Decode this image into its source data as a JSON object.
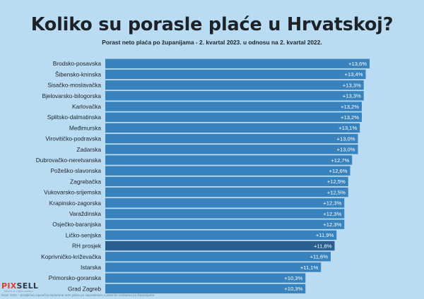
{
  "header": {
    "title": "Koliko su porasle plaće u Hrvatskoj?",
    "subtitle": "Porast neto plaća po županijama - 2. kvartal 2023. u odnosu na 2. kvartal 2022."
  },
  "colors": {
    "background": "#b9dcf3",
    "bar": "#3883bd",
    "bar_highlight": "#2a5f8f",
    "text": "#1c2228"
  },
  "chart_data": {
    "type": "bar",
    "orientation": "horizontal",
    "title": "Koliko su porasle plaće u Hrvatskoj?",
    "subtitle": "Porast neto plaća po županijama - 2. kvartal 2023. u odnosu na 2. kvartal 2022.",
    "categories": [
      "Brodsko-posavska",
      "Šibensko-kninska",
      "Sisačko-moslavačka",
      "Bjelovarsko-bilogorska",
      "Karlovačka",
      "Splitsko-dalmatinska",
      "Međimurska",
      "Virovitičko-podravska",
      "Zadarska",
      "Dubrovačko-neretvanska",
      "Požeško-slavonska",
      "Zagrebačka",
      "Vukovarsko-srijemska",
      "Krapinsko-zagorska",
      "Varaždinska",
      "Osječko-baranjska",
      "Ličko-senjska",
      "RH prosjek",
      "Koprivničko-križevačka",
      "Istarska",
      "Primorsko-goranska",
      "Grad Zagreb"
    ],
    "values": [
      13.6,
      13.4,
      13.3,
      13.3,
      13.2,
      13.2,
      13.1,
      13.0,
      13.0,
      12.7,
      12.6,
      12.5,
      12.5,
      12.3,
      12.3,
      12.3,
      11.9,
      11.8,
      11.6,
      11.1,
      10.3,
      10.3
    ],
    "value_labels": [
      "+13,6%",
      "+13,4%",
      "+13,3%",
      "+13,3%",
      "+13,2%",
      "+13,2%",
      "+13,1%",
      "+13,0%",
      "+13,0%",
      "+12,7%",
      "+12,6%",
      "+12,5%",
      "+12,5%",
      "+12,3%",
      "+12,3%",
      "+12,3%",
      "+11,9%",
      "+11,8%",
      "+11,6%",
      "+11,1%",
      "+10,3%",
      "+10,3%"
    ],
    "highlight_category": "RH prosjek",
    "xlim": [
      0,
      13.6
    ],
    "grid": false,
    "legend": "none"
  },
  "footer": {
    "logo_pix": "PIX",
    "logo_sell": "SELL",
    "logo_sub": "PHOTO & VIDEO AGENCY",
    "source": "Izvor: DZS – prosječna mjesečna isplaćena neto plaća po zaposlenom u pravnim osobama po županijama"
  }
}
